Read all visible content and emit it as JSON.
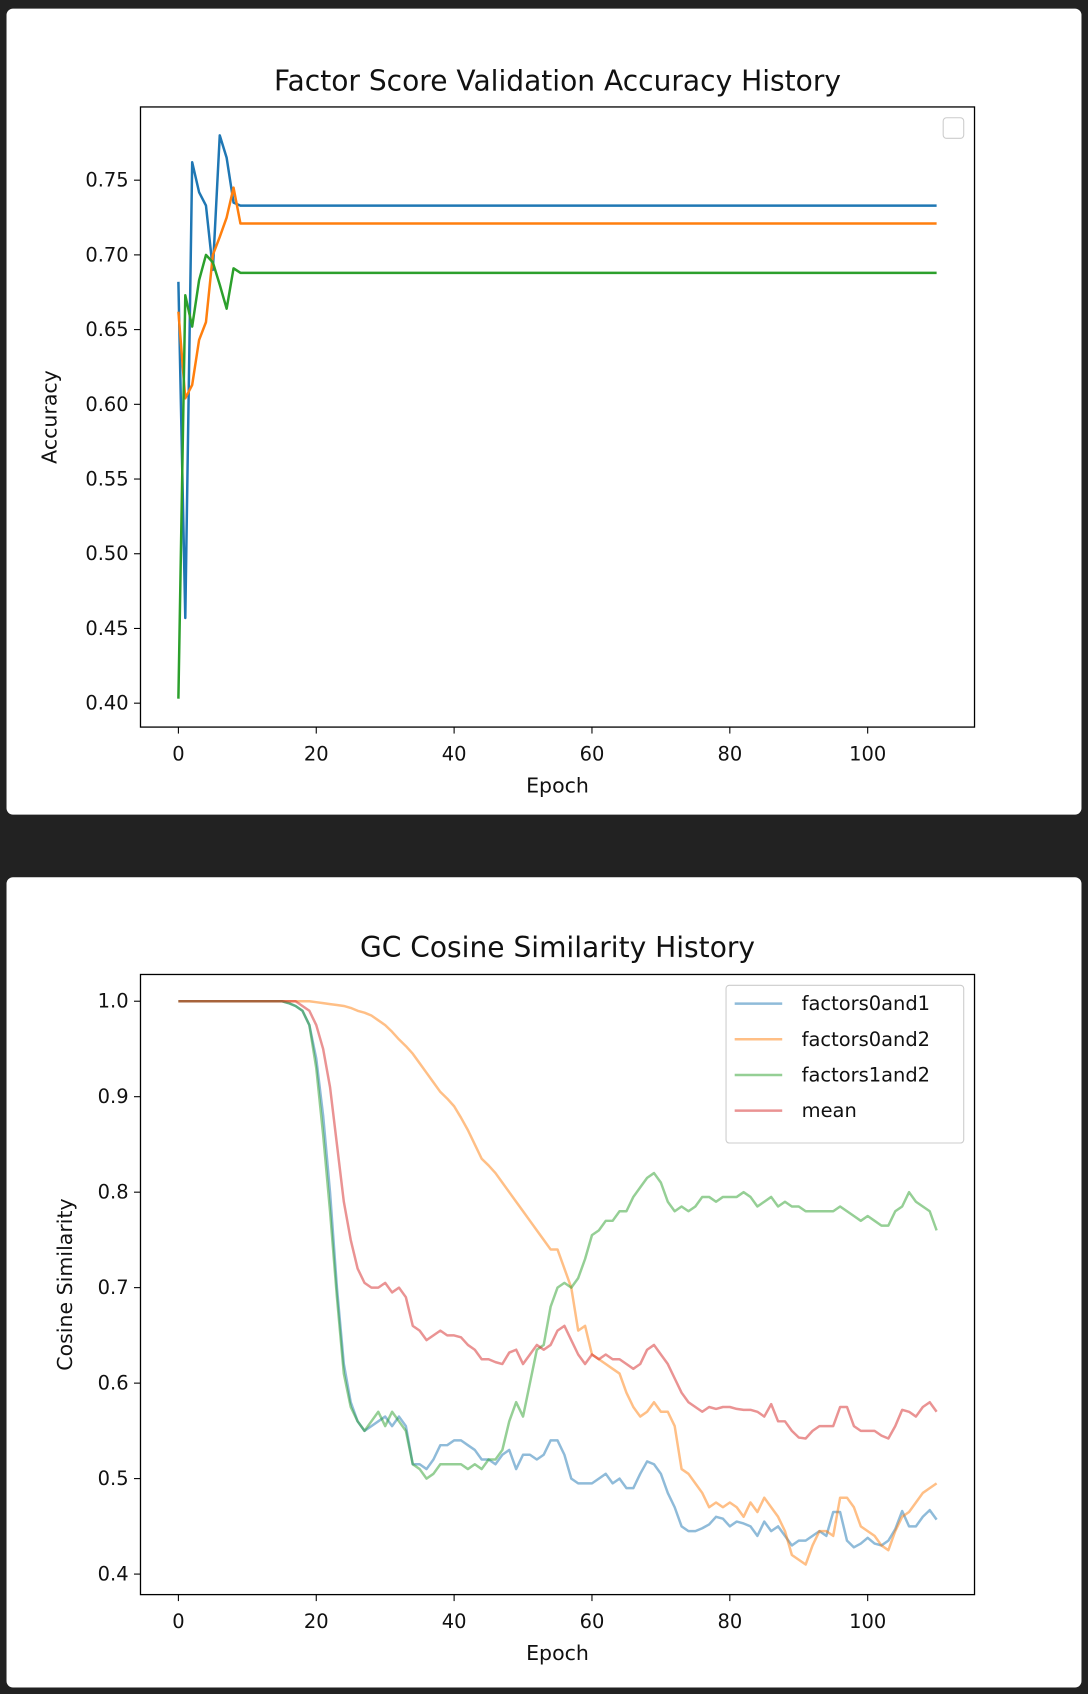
{
  "chart_data": [
    {
      "type": "line",
      "title": "Factor Score Validation Accuracy History",
      "x_label": "Epoch",
      "y_label": "Accuracy",
      "x": [
        0,
        1,
        2,
        3,
        4,
        5,
        6,
        7,
        8,
        9,
        10,
        11,
        12,
        13,
        14,
        15,
        16,
        17,
        18,
        19,
        20,
        21,
        22,
        23,
        24,
        25,
        26,
        27,
        28,
        29,
        30,
        31,
        32,
        33,
        34,
        35,
        36,
        37,
        38,
        39,
        40,
        41,
        42,
        43,
        44,
        45,
        46,
        47,
        48,
        49,
        50,
        51,
        52,
        53,
        54,
        55,
        56,
        57,
        58,
        59,
        60,
        61,
        62,
        63,
        64,
        65,
        66,
        67,
        68,
        69,
        70,
        71,
        72,
        73,
        74,
        75,
        76,
        77,
        78,
        79,
        80,
        81,
        82,
        83,
        84,
        85,
        86,
        87,
        88,
        89,
        90,
        91,
        92,
        93,
        94,
        95,
        96,
        97,
        98,
        99,
        100,
        101,
        102,
        103,
        104,
        105,
        106,
        107,
        108,
        109,
        110
      ],
      "series": [
        {
          "color": "#1f77b4",
          "values": [
            0.682,
            0.457,
            0.762,
            0.742,
            0.733,
            0.69,
            0.78,
            0.765,
            0.735,
            0.733,
            0.733,
            0.733,
            0.733,
            0.733,
            0.733,
            0.733,
            0.733,
            0.733,
            0.733,
            0.733,
            0.733,
            0.733,
            0.733,
            0.733,
            0.733,
            0.733,
            0.733,
            0.733,
            0.733,
            0.733,
            0.733,
            0.733,
            0.733,
            0.733,
            0.733,
            0.733,
            0.733,
            0.733,
            0.733,
            0.733,
            0.733,
            0.733,
            0.733,
            0.733,
            0.733,
            0.733,
            0.733,
            0.733,
            0.733,
            0.733,
            0.733,
            0.733,
            0.733,
            0.733,
            0.733,
            0.733,
            0.733,
            0.733,
            0.733,
            0.733,
            0.733,
            0.733,
            0.733,
            0.733,
            0.733,
            0.733,
            0.733,
            0.733,
            0.733,
            0.733,
            0.733,
            0.733,
            0.733,
            0.733,
            0.733,
            0.733,
            0.733,
            0.733,
            0.733,
            0.733,
            0.733,
            0.733,
            0.733,
            0.733,
            0.733,
            0.733,
            0.733,
            0.733,
            0.733,
            0.733,
            0.733,
            0.733,
            0.733,
            0.733,
            0.733,
            0.733,
            0.733,
            0.733,
            0.733,
            0.733,
            0.733,
            0.733,
            0.733,
            0.733,
            0.733,
            0.733,
            0.733,
            0.733,
            0.733,
            0.733,
            0.733
          ]
        },
        {
          "color": "#ff7f0e",
          "values": [
            0.662,
            0.604,
            0.613,
            0.643,
            0.655,
            0.7,
            0.712,
            0.725,
            0.745,
            0.721,
            0.721,
            0.721,
            0.721,
            0.721,
            0.721,
            0.721,
            0.721,
            0.721,
            0.721,
            0.721,
            0.721,
            0.721,
            0.721,
            0.721,
            0.721,
            0.721,
            0.721,
            0.721,
            0.721,
            0.721,
            0.721,
            0.721,
            0.721,
            0.721,
            0.721,
            0.721,
            0.721,
            0.721,
            0.721,
            0.721,
            0.721,
            0.721,
            0.721,
            0.721,
            0.721,
            0.721,
            0.721,
            0.721,
            0.721,
            0.721,
            0.721,
            0.721,
            0.721,
            0.721,
            0.721,
            0.721,
            0.721,
            0.721,
            0.721,
            0.721,
            0.721,
            0.721,
            0.721,
            0.721,
            0.721,
            0.721,
            0.721,
            0.721,
            0.721,
            0.721,
            0.721,
            0.721,
            0.721,
            0.721,
            0.721,
            0.721,
            0.721,
            0.721,
            0.721,
            0.721,
            0.721,
            0.721,
            0.721,
            0.721,
            0.721,
            0.721,
            0.721,
            0.721,
            0.721,
            0.721,
            0.721,
            0.721,
            0.721,
            0.721,
            0.721,
            0.721,
            0.721,
            0.721,
            0.721,
            0.721,
            0.721,
            0.721,
            0.721,
            0.721,
            0.721,
            0.721,
            0.721,
            0.721,
            0.721,
            0.721,
            0.721
          ]
        },
        {
          "color": "#2ca02c",
          "values": [
            0.403,
            0.673,
            0.652,
            0.683,
            0.7,
            0.695,
            0.68,
            0.664,
            0.691,
            0.688,
            0.688,
            0.688,
            0.688,
            0.688,
            0.688,
            0.688,
            0.688,
            0.688,
            0.688,
            0.688,
            0.688,
            0.688,
            0.688,
            0.688,
            0.688,
            0.688,
            0.688,
            0.688,
            0.688,
            0.688,
            0.688,
            0.688,
            0.688,
            0.688,
            0.688,
            0.688,
            0.688,
            0.688,
            0.688,
            0.688,
            0.688,
            0.688,
            0.688,
            0.688,
            0.688,
            0.688,
            0.688,
            0.688,
            0.688,
            0.688,
            0.688,
            0.688,
            0.688,
            0.688,
            0.688,
            0.688,
            0.688,
            0.688,
            0.688,
            0.688,
            0.688,
            0.688,
            0.688,
            0.688,
            0.688,
            0.688,
            0.688,
            0.688,
            0.688,
            0.688,
            0.688,
            0.688,
            0.688,
            0.688,
            0.688,
            0.688,
            0.688,
            0.688,
            0.688,
            0.688,
            0.688,
            0.688,
            0.688,
            0.688,
            0.688,
            0.688,
            0.688,
            0.688,
            0.688,
            0.688,
            0.688,
            0.688,
            0.688,
            0.688,
            0.688,
            0.688,
            0.688,
            0.688,
            0.688,
            0.688,
            0.688,
            0.688,
            0.688,
            0.688,
            0.688,
            0.688,
            0.688,
            0.688,
            0.688,
            0.688,
            0.688
          ]
        }
      ],
      "xlim": [
        -5.5,
        115.5
      ],
      "xticks": [
        0,
        20,
        40,
        60,
        80,
        100
      ],
      "ylim": [
        0.384,
        0.799
      ],
      "yticks": [
        {
          "value": 0.4,
          "label": "0.40"
        },
        0.45,
        {
          "value": 0.5,
          "label": "0.50"
        },
        0.55,
        {
          "value": 0.6,
          "label": "0.60"
        },
        0.65,
        {
          "value": 0.7,
          "label": "0.70"
        },
        0.75
      ],
      "legend": "upper right",
      "alpha": 1
    },
    {
      "type": "line",
      "title": "GC Cosine Similarity History",
      "x_label": "Epoch",
      "y_label": "Cosine Similarity",
      "x": [
        0,
        1,
        2,
        3,
        4,
        5,
        6,
        7,
        8,
        9,
        10,
        11,
        12,
        13,
        14,
        15,
        16,
        17,
        18,
        19,
        20,
        21,
        22,
        23,
        24,
        25,
        26,
        27,
        28,
        29,
        30,
        31,
        32,
        33,
        34,
        35,
        36,
        37,
        38,
        39,
        40,
        41,
        42,
        43,
        44,
        45,
        46,
        47,
        48,
        49,
        50,
        51,
        52,
        53,
        54,
        55,
        56,
        57,
        58,
        59,
        60,
        61,
        62,
        63,
        64,
        65,
        66,
        67,
        68,
        69,
        70,
        71,
        72,
        73,
        74,
        75,
        76,
        77,
        78,
        79,
        80,
        81,
        82,
        83,
        84,
        85,
        86,
        87,
        88,
        89,
        90,
        91,
        92,
        93,
        94,
        95,
        96,
        97,
        98,
        99,
        100,
        101,
        102,
        103,
        104,
        105,
        106,
        107,
        108,
        109,
        110
      ],
      "series": [
        {
          "name": "factors0and1",
          "color": "#1f77b4",
          "values": [
            1,
            1,
            1,
            1,
            1,
            1,
            1,
            1,
            1,
            1,
            1,
            1,
            1,
            1,
            1,
            1,
            0.998,
            0.995,
            0.99,
            0.975,
            0.94,
            0.88,
            0.8,
            0.7,
            0.62,
            0.58,
            0.56,
            0.55,
            0.555,
            0.56,
            0.565,
            0.555,
            0.565,
            0.555,
            0.515,
            0.515,
            0.51,
            0.52,
            0.535,
            0.535,
            0.54,
            0.54,
            0.535,
            0.53,
            0.52,
            0.52,
            0.515,
            0.525,
            0.53,
            0.51,
            0.525,
            0.525,
            0.52,
            0.525,
            0.54,
            0.54,
            0.525,
            0.5,
            0.495,
            0.495,
            0.495,
            0.5,
            0.505,
            0.495,
            0.5,
            0.49,
            0.49,
            0.505,
            0.518,
            0.515,
            0.505,
            0.485,
            0.47,
            0.45,
            0.445,
            0.445,
            0.448,
            0.452,
            0.46,
            0.458,
            0.45,
            0.455,
            0.453,
            0.45,
            0.44,
            0.455,
            0.445,
            0.45,
            0.44,
            0.43,
            0.435,
            0.435,
            0.44,
            0.445,
            0.44,
            0.465,
            0.465,
            0.435,
            0.428,
            0.432,
            0.438,
            0.432,
            0.43,
            0.435,
            0.447,
            0.466,
            0.45,
            0.45,
            0.46,
            0.467,
            0.457
          ]
        },
        {
          "name": "factors0and2",
          "color": "#ff7f0e",
          "values": [
            1,
            1,
            1,
            1,
            1,
            1,
            1,
            1,
            1,
            1,
            1,
            1,
            1,
            1,
            1,
            1,
            1,
            1,
            1,
            1,
            0.999,
            0.998,
            0.997,
            0.996,
            0.995,
            0.993,
            0.99,
            0.988,
            0.985,
            0.98,
            0.975,
            0.968,
            0.96,
            0.953,
            0.945,
            0.935,
            0.925,
            0.915,
            0.905,
            0.898,
            0.89,
            0.878,
            0.865,
            0.85,
            0.835,
            0.828,
            0.82,
            0.81,
            0.8,
            0.79,
            0.78,
            0.77,
            0.76,
            0.75,
            0.74,
            0.74,
            0.72,
            0.7,
            0.655,
            0.66,
            0.63,
            0.625,
            0.62,
            0.615,
            0.61,
            0.59,
            0.575,
            0.565,
            0.57,
            0.58,
            0.57,
            0.57,
            0.555,
            0.51,
            0.505,
            0.495,
            0.485,
            0.47,
            0.475,
            0.47,
            0.475,
            0.47,
            0.46,
            0.475,
            0.465,
            0.48,
            0.47,
            0.46,
            0.445,
            0.42,
            0.415,
            0.41,
            0.43,
            0.445,
            0.445,
            0.44,
            0.48,
            0.48,
            0.47,
            0.45,
            0.445,
            0.44,
            0.43,
            0.425,
            0.445,
            0.46,
            0.465,
            0.475,
            0.485,
            0.49,
            0.495
          ]
        },
        {
          "name": "factors1and2",
          "color": "#2ca02c",
          "values": [
            1,
            1,
            1,
            1,
            1,
            1,
            1,
            1,
            1,
            1,
            1,
            1,
            1,
            1,
            1,
            1,
            0.998,
            0.995,
            0.99,
            0.975,
            0.93,
            0.86,
            0.78,
            0.69,
            0.61,
            0.575,
            0.56,
            0.55,
            0.56,
            0.57,
            0.555,
            0.57,
            0.56,
            0.55,
            0.515,
            0.51,
            0.5,
            0.505,
            0.515,
            0.515,
            0.515,
            0.515,
            0.51,
            0.515,
            0.51,
            0.52,
            0.52,
            0.53,
            0.56,
            0.58,
            0.565,
            0.6,
            0.635,
            0.64,
            0.68,
            0.7,
            0.705,
            0.7,
            0.71,
            0.73,
            0.755,
            0.76,
            0.77,
            0.77,
            0.78,
            0.78,
            0.795,
            0.805,
            0.815,
            0.82,
            0.81,
            0.79,
            0.78,
            0.785,
            0.78,
            0.785,
            0.795,
            0.795,
            0.79,
            0.795,
            0.795,
            0.795,
            0.8,
            0.795,
            0.785,
            0.79,
            0.795,
            0.785,
            0.79,
            0.785,
            0.785,
            0.78,
            0.78,
            0.78,
            0.78,
            0.78,
            0.785,
            0.78,
            0.775,
            0.77,
            0.775,
            0.77,
            0.765,
            0.765,
            0.78,
            0.785,
            0.8,
            0.79,
            0.785,
            0.78,
            0.76
          ]
        },
        {
          "name": "mean",
          "color": "#d62728",
          "values": [
            1,
            1,
            1,
            1,
            1,
            1,
            1,
            1,
            1,
            1,
            1,
            1,
            1,
            1,
            1,
            1,
            1,
            1,
            0.995,
            0.99,
            0.975,
            0.95,
            0.91,
            0.85,
            0.79,
            0.75,
            0.72,
            0.705,
            0.7,
            0.7,
            0.705,
            0.695,
            0.7,
            0.69,
            0.66,
            0.655,
            0.645,
            0.65,
            0.655,
            0.65,
            0.65,
            0.648,
            0.64,
            0.635,
            0.625,
            0.625,
            0.622,
            0.62,
            0.632,
            0.635,
            0.62,
            0.63,
            0.64,
            0.635,
            0.64,
            0.655,
            0.66,
            0.645,
            0.63,
            0.62,
            0.63,
            0.625,
            0.63,
            0.625,
            0.625,
            0.62,
            0.615,
            0.62,
            0.635,
            0.64,
            0.63,
            0.62,
            0.605,
            0.59,
            0.58,
            0.575,
            0.57,
            0.575,
            0.573,
            0.575,
            0.575,
            0.573,
            0.572,
            0.572,
            0.57,
            0.565,
            0.578,
            0.56,
            0.56,
            0.55,
            0.543,
            0.542,
            0.55,
            0.555,
            0.555,
            0.555,
            0.575,
            0.575,
            0.555,
            0.55,
            0.55,
            0.55,
            0.545,
            0.542,
            0.555,
            0.572,
            0.57,
            0.565,
            0.575,
            0.58,
            0.57
          ]
        }
      ],
      "xlim": [
        -5.5,
        115.5
      ],
      "xticks": [
        0,
        20,
        40,
        60,
        80,
        100
      ],
      "ylim": [
        0.3785,
        1.028
      ],
      "yticks": [
        0.4,
        0.5,
        0.6,
        0.7,
        0.8,
        0.9,
        {
          "value": 1,
          "label": "1.0"
        }
      ],
      "legend": "upper right",
      "alpha": 0.5
    }
  ]
}
